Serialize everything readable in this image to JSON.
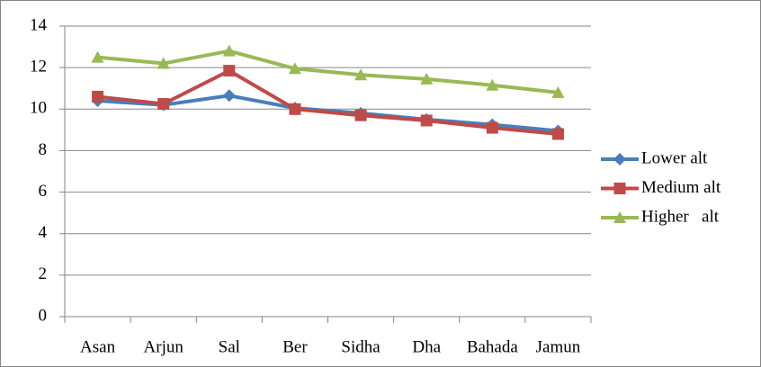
{
  "chart_data": {
    "type": "line",
    "categories": [
      "Asan",
      "Arjun",
      "Sal",
      "Ber",
      "Sidha",
      "Dha",
      "Bahada",
      "Jamun"
    ],
    "series": [
      {
        "name": "Lower alt",
        "color": "#4a7ebb",
        "marker": "diamond",
        "values": [
          10.4,
          10.2,
          10.65,
          10.05,
          9.8,
          9.5,
          9.25,
          8.95
        ]
      },
      {
        "name": "Medium alt",
        "color": "#be4b48",
        "marker": "square",
        "values": [
          10.6,
          10.25,
          11.85,
          10.0,
          9.7,
          9.45,
          9.1,
          8.8
        ]
      },
      {
        "name": "Higher   alt",
        "color": "#98b954",
        "marker": "triangle",
        "values": [
          12.5,
          12.2,
          12.8,
          11.95,
          11.65,
          11.45,
          11.15,
          10.8
        ]
      }
    ],
    "ylim": [
      0,
      14
    ],
    "yticks": [
      0,
      2,
      4,
      6,
      8,
      10,
      12,
      14
    ],
    "grid": true,
    "legend": "right"
  }
}
